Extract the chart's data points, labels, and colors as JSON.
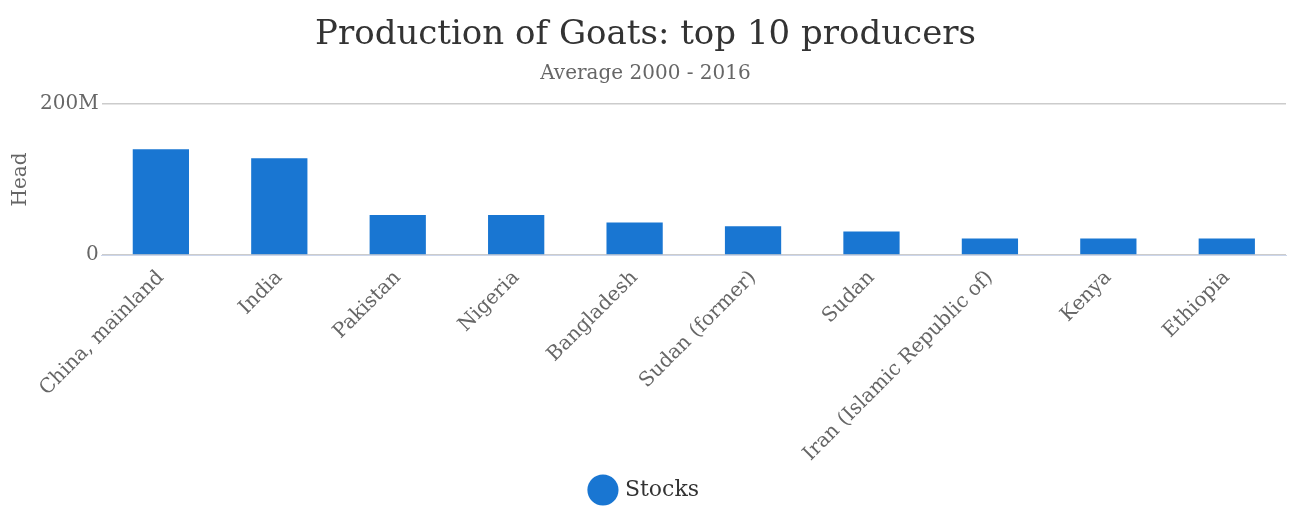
{
  "chart_data": {
    "type": "bar",
    "title": "Production of Goats: top 10 producers",
    "subtitle": "Average 2000 - 2016",
    "ylabel": "Head",
    "categories": [
      "China, mainland",
      "India",
      "Pakistan",
      "Nigeria",
      "Bangladesh",
      "Sudan (former)",
      "Sudan",
      "Iran (Islamic Republic of)",
      "Kenya",
      "Ethiopia"
    ],
    "series": [
      {
        "name": "Stocks",
        "color": "#1976d2",
        "values": [
          140000000,
          128000000,
          53000000,
          53000000,
          43000000,
          38000000,
          31000000,
          22000000,
          22000000,
          22000000
        ]
      }
    ],
    "ylim": [
      0,
      200000000
    ],
    "yticks": [
      0,
      {
        "value": 200000000,
        "label": "200M"
      }
    ],
    "grid": "y",
    "legend": "bottom",
    "marker": "circle"
  }
}
